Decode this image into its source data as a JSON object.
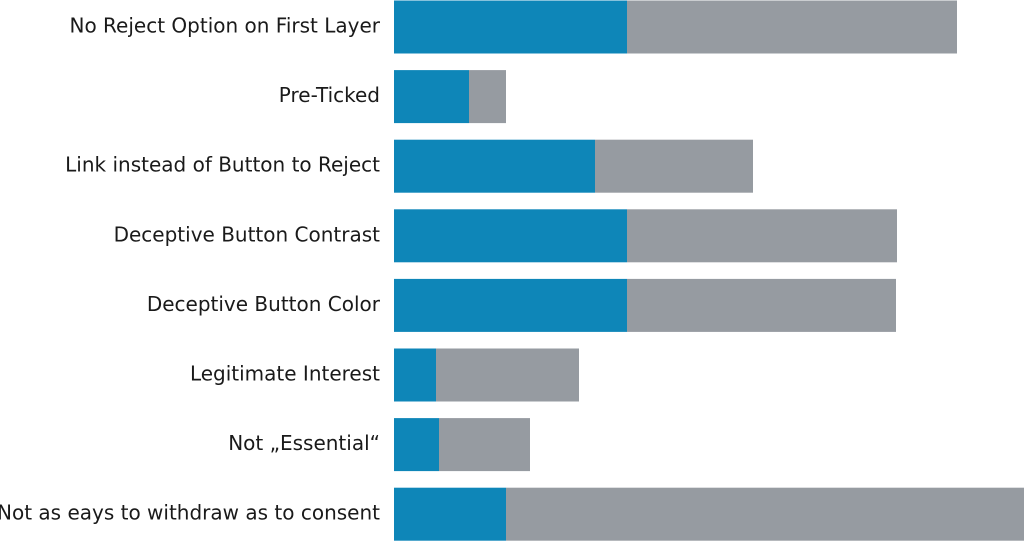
{
  "chart_data": {
    "type": "bar",
    "orientation": "horizontal",
    "stacked": true,
    "categories": [
      "No Reject Option on First Layer",
      "Pre-Ticked",
      "Link instead of Button to Reject",
      "Deceptive Button Contrast",
      "Deceptive Button Color",
      "Legitimate Interest",
      "Not „Essential“",
      "Not as eays to withdraw as to consent"
    ],
    "series": [
      {
        "color": "#0e86b8",
        "values": [
          233,
          75,
          201,
          233,
          233,
          42,
          45,
          112
        ]
      },
      {
        "color": "#969ba1",
        "values": [
          330,
          37,
          158,
          270,
          269,
          143,
          91,
          518
        ]
      }
    ],
    "xlim": [
      0,
      630
    ]
  }
}
